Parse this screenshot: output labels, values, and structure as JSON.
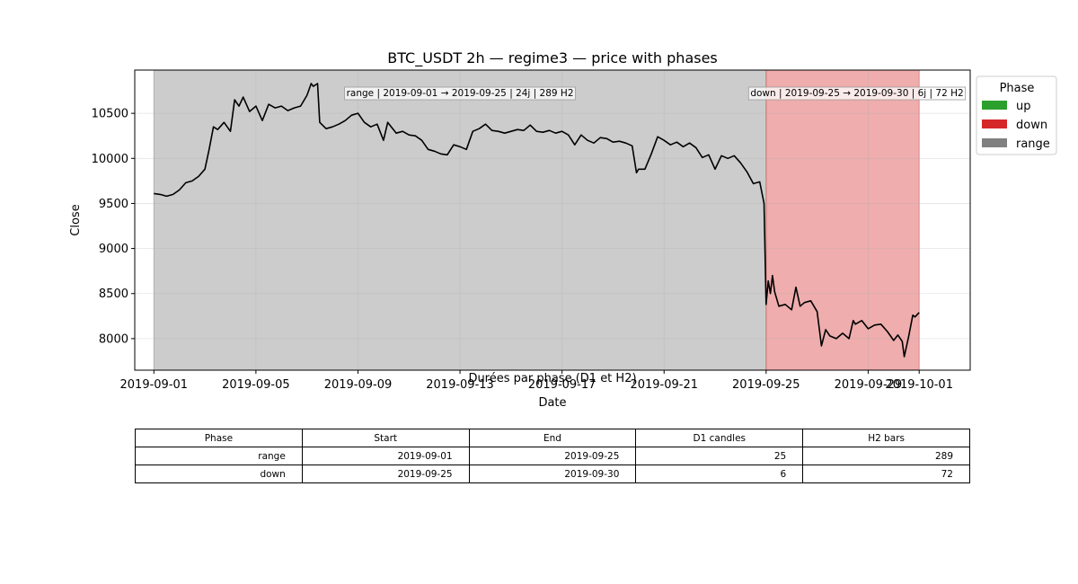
{
  "chart_data": {
    "type": "line",
    "title": "BTC_USDT 2h — regime3 — price with phases",
    "xlabel": "Date",
    "ylabel": "Close",
    "xlim": [
      "2018-08-31T06:00",
      "2019-10-03T00:00"
    ],
    "ylim": [
      7650,
      10980
    ],
    "x_ticks": [
      "2019-09-01",
      "2019-09-05",
      "2019-09-09",
      "2019-09-13",
      "2019-09-17",
      "2019-09-21",
      "2019-09-25",
      "2019-09-29",
      "2019-10-01"
    ],
    "y_ticks": [
      8000,
      8500,
      9000,
      9500,
      10000,
      10500
    ],
    "grid": true,
    "series": [
      {
        "color": "#000000",
        "points": [
          [
            "2019-09-01T00:00",
            9610
          ],
          [
            "2019-09-01T06:00",
            9600
          ],
          [
            "2019-09-01T12:00",
            9580
          ],
          [
            "2019-09-01T18:00",
            9600
          ],
          [
            "2019-09-02T00:00",
            9650
          ],
          [
            "2019-09-02T06:00",
            9730
          ],
          [
            "2019-09-02T12:00",
            9750
          ],
          [
            "2019-09-02T18:00",
            9800
          ],
          [
            "2019-09-03T00:00",
            9880
          ],
          [
            "2019-09-03T04:00",
            10100
          ],
          [
            "2019-09-03T08:00",
            10350
          ],
          [
            "2019-09-03T12:00",
            10320
          ],
          [
            "2019-09-03T18:00",
            10400
          ],
          [
            "2019-09-04T00:00",
            10300
          ],
          [
            "2019-09-04T04:00",
            10650
          ],
          [
            "2019-09-04T08:00",
            10580
          ],
          [
            "2019-09-04T12:00",
            10680
          ],
          [
            "2019-09-04T18:00",
            10520
          ],
          [
            "2019-09-05T00:00",
            10580
          ],
          [
            "2019-09-05T06:00",
            10420
          ],
          [
            "2019-09-05T12:00",
            10600
          ],
          [
            "2019-09-05T18:00",
            10560
          ],
          [
            "2019-09-06T00:00",
            10580
          ],
          [
            "2019-09-06T06:00",
            10530
          ],
          [
            "2019-09-06T12:00",
            10560
          ],
          [
            "2019-09-06T18:00",
            10580
          ],
          [
            "2019-09-07T00:00",
            10700
          ],
          [
            "2019-09-07T04:00",
            10830
          ],
          [
            "2019-09-07T06:00",
            10800
          ],
          [
            "2019-09-07T10:00",
            10830
          ],
          [
            "2019-09-07T12:00",
            10400
          ],
          [
            "2019-09-07T18:00",
            10330
          ],
          [
            "2019-09-08T00:00",
            10350
          ],
          [
            "2019-09-08T06:00",
            10380
          ],
          [
            "2019-09-08T12:00",
            10420
          ],
          [
            "2019-09-08T18:00",
            10480
          ],
          [
            "2019-09-09T00:00",
            10500
          ],
          [
            "2019-09-09T06:00",
            10400
          ],
          [
            "2019-09-09T12:00",
            10350
          ],
          [
            "2019-09-09T18:00",
            10380
          ],
          [
            "2019-09-10T00:00",
            10200
          ],
          [
            "2019-09-10T04:00",
            10400
          ],
          [
            "2019-09-10T12:00",
            10280
          ],
          [
            "2019-09-10T18:00",
            10300
          ],
          [
            "2019-09-11T00:00",
            10260
          ],
          [
            "2019-09-11T06:00",
            10250
          ],
          [
            "2019-09-11T12:00",
            10200
          ],
          [
            "2019-09-11T18:00",
            10100
          ],
          [
            "2019-09-12T00:00",
            10080
          ],
          [
            "2019-09-12T06:00",
            10050
          ],
          [
            "2019-09-12T12:00",
            10040
          ],
          [
            "2019-09-12T18:00",
            10150
          ],
          [
            "2019-09-13T00:00",
            10130
          ],
          [
            "2019-09-13T06:00",
            10100
          ],
          [
            "2019-09-13T12:00",
            10300
          ],
          [
            "2019-09-13T18:00",
            10330
          ],
          [
            "2019-09-14T00:00",
            10380
          ],
          [
            "2019-09-14T06:00",
            10310
          ],
          [
            "2019-09-14T12:00",
            10300
          ],
          [
            "2019-09-14T18:00",
            10280
          ],
          [
            "2019-09-15T00:00",
            10300
          ],
          [
            "2019-09-15T06:00",
            10320
          ],
          [
            "2019-09-15T12:00",
            10310
          ],
          [
            "2019-09-15T18:00",
            10370
          ],
          [
            "2019-09-16T00:00",
            10300
          ],
          [
            "2019-09-16T06:00",
            10290
          ],
          [
            "2019-09-16T12:00",
            10310
          ],
          [
            "2019-09-16T18:00",
            10280
          ],
          [
            "2019-09-17T00:00",
            10300
          ],
          [
            "2019-09-17T06:00",
            10260
          ],
          [
            "2019-09-17T12:00",
            10150
          ],
          [
            "2019-09-17T18:00",
            10260
          ],
          [
            "2019-09-18T00:00",
            10200
          ],
          [
            "2019-09-18T06:00",
            10170
          ],
          [
            "2019-09-18T12:00",
            10230
          ],
          [
            "2019-09-18T18:00",
            10220
          ],
          [
            "2019-09-19T00:00",
            10180
          ],
          [
            "2019-09-19T06:00",
            10190
          ],
          [
            "2019-09-19T12:00",
            10170
          ],
          [
            "2019-09-19T18:00",
            10140
          ],
          [
            "2019-09-19T22:00",
            9840
          ],
          [
            "2019-09-20T00:00",
            9880
          ],
          [
            "2019-09-20T06:00",
            9880
          ],
          [
            "2019-09-20T12:00",
            10050
          ],
          [
            "2019-09-20T18:00",
            10240
          ],
          [
            "2019-09-21T00:00",
            10200
          ],
          [
            "2019-09-21T06:00",
            10150
          ],
          [
            "2019-09-21T12:00",
            10180
          ],
          [
            "2019-09-21T18:00",
            10130
          ],
          [
            "2019-09-22T00:00",
            10170
          ],
          [
            "2019-09-22T06:00",
            10120
          ],
          [
            "2019-09-22T12:00",
            10010
          ],
          [
            "2019-09-22T18:00",
            10040
          ],
          [
            "2019-09-23T00:00",
            9880
          ],
          [
            "2019-09-23T06:00",
            10030
          ],
          [
            "2019-09-23T12:00",
            10000
          ],
          [
            "2019-09-23T18:00",
            10030
          ],
          [
            "2019-09-24T00:00",
            9950
          ],
          [
            "2019-09-24T06:00",
            9850
          ],
          [
            "2019-09-24T12:00",
            9720
          ],
          [
            "2019-09-24T18:00",
            9740
          ],
          [
            "2019-09-24T22:00",
            9500
          ],
          [
            "2019-09-25T00:00",
            8380
          ],
          [
            "2019-09-25T02:00",
            8640
          ],
          [
            "2019-09-25T04:00",
            8500
          ],
          [
            "2019-09-25T06:00",
            8700
          ],
          [
            "2019-09-25T08:00",
            8520
          ],
          [
            "2019-09-25T12:00",
            8360
          ],
          [
            "2019-09-25T18:00",
            8380
          ],
          [
            "2019-09-26T00:00",
            8320
          ],
          [
            "2019-09-26T04:00",
            8570
          ],
          [
            "2019-09-26T08:00",
            8360
          ],
          [
            "2019-09-26T12:00",
            8400
          ],
          [
            "2019-09-26T18:00",
            8420
          ],
          [
            "2019-09-27T00:00",
            8300
          ],
          [
            "2019-09-27T04:00",
            7920
          ],
          [
            "2019-09-27T08:00",
            8100
          ],
          [
            "2019-09-27T12:00",
            8030
          ],
          [
            "2019-09-27T18:00",
            8000
          ],
          [
            "2019-09-28T00:00",
            8060
          ],
          [
            "2019-09-28T06:00",
            8000
          ],
          [
            "2019-09-28T10:00",
            8200
          ],
          [
            "2019-09-28T12:00",
            8160
          ],
          [
            "2019-09-28T18:00",
            8200
          ],
          [
            "2019-09-29T00:00",
            8110
          ],
          [
            "2019-09-29T06:00",
            8150
          ],
          [
            "2019-09-29T12:00",
            8160
          ],
          [
            "2019-09-29T18:00",
            8080
          ],
          [
            "2019-09-30T00:00",
            7980
          ],
          [
            "2019-09-30T04:00",
            8040
          ],
          [
            "2019-09-30T08:00",
            7970
          ],
          [
            "2019-09-30T10:00",
            7800
          ],
          [
            "2019-09-30T14:00",
            8020
          ],
          [
            "2019-09-30T18:00",
            8260
          ],
          [
            "2019-09-30T20:00",
            8240
          ],
          [
            "2019-10-01T00:00",
            8290
          ]
        ]
      }
    ],
    "phases": [
      {
        "phase": "range",
        "start": "2019-09-01T00:00",
        "end": "2019-09-25T00:00",
        "color": "#808080",
        "label": "range | 2019-09-01 → 2019-09-25 | 24j | 289 H2",
        "label_at": "2019-09-13T00:00"
      },
      {
        "phase": "down",
        "start": "2019-09-25T00:00",
        "end": "2019-10-01T00:00",
        "color": "#d62728",
        "label": "down | 2019-09-25 → 2019-09-30 | 6j | 72 H2",
        "label_at": "2019-09-28T00:00"
      }
    ],
    "legend": {
      "title": "Phase",
      "placement": "outside-right",
      "items": [
        {
          "label": "up",
          "color": "#2ca02c"
        },
        {
          "label": "down",
          "color": "#d62728"
        },
        {
          "label": "range",
          "color": "#808080"
        }
      ]
    }
  },
  "table": {
    "title": "Durées par phase (D1 et H2)",
    "headers": [
      "Phase",
      "Start",
      "End",
      "D1 candles",
      "H2 bars"
    ],
    "rows": [
      [
        "range",
        "2019-09-01",
        "2019-09-25",
        "25",
        "289"
      ],
      [
        "down",
        "2019-09-25",
        "2019-09-30",
        "6",
        "72"
      ]
    ]
  }
}
